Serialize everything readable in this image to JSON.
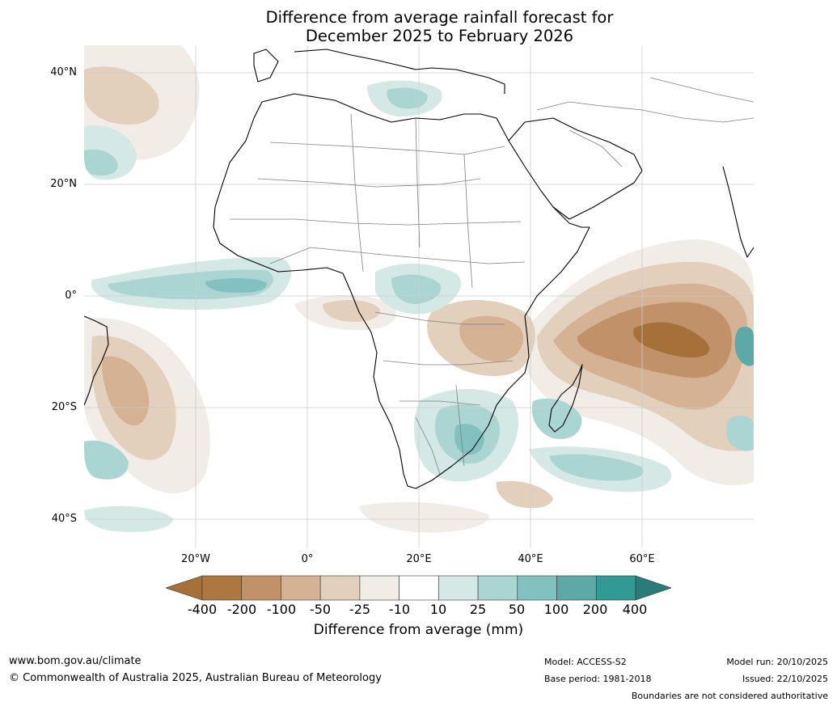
{
  "title": {
    "line1": "Difference from average rainfall forecast for",
    "line2": "December 2025 to February 2026"
  },
  "map": {
    "lat_labels": [
      "40°N",
      "20°N",
      "0°",
      "20°S",
      "40°S"
    ],
    "lon_labels": [
      "20°W",
      "0°",
      "20°E",
      "40°E",
      "60°E"
    ]
  },
  "legend": {
    "title": "Difference from average (mm)",
    "ticks": [
      "-400",
      "-200",
      "-100",
      "-50",
      "-25",
      "-10",
      "10",
      "25",
      "50",
      "100",
      "200",
      "400"
    ],
    "colors": [
      "#a5703a",
      "#ad7840",
      "#c1926a",
      "#d4b293",
      "#e3d0bc",
      "#f1ece5",
      "#ffffff",
      "#d4e8e6",
      "#aad5d3",
      "#82c1bf",
      "#5ca9a7",
      "#339995",
      "#2a7c79"
    ]
  },
  "footer": {
    "url": "www.bom.gov.au/climate",
    "copyright": "© Commonwealth of Australia 2025, Australian Bureau of Meteorology",
    "model": "Model: ACCESS-S2",
    "base_period": "Base period: 1981-2018",
    "model_run": "Model run: 20/10/2025",
    "issued": "Issued: 22/10/2025",
    "disclaimer": "Boundaries are not considered authoritative"
  }
}
